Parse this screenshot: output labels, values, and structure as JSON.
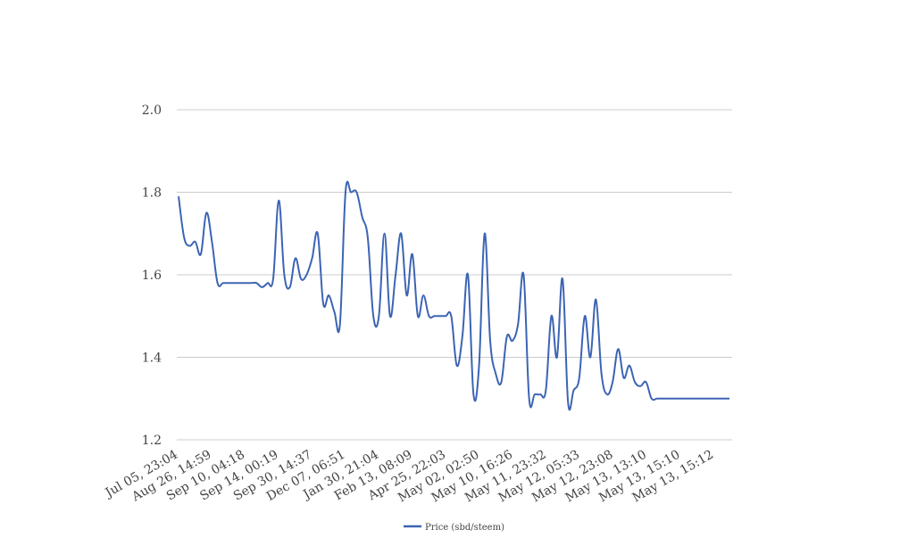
{
  "chart_data": {
    "type": "line",
    "title": "",
    "xlabel": "",
    "ylabel": "",
    "ylim": [
      1.2,
      2.0
    ],
    "yticks": [
      "2.0",
      "1.8",
      "1.6",
      "1.4",
      "1.2"
    ],
    "ytick_values": [
      2.0,
      1.8,
      1.6,
      1.4,
      1.2
    ],
    "xtick_labels": [
      "Jul 05, 23:04",
      "Aug 26, 14:59",
      "Sep 10, 04:18",
      "Sep 14, 00:19",
      "Sep 30, 14:37",
      "Dec 07, 06:51",
      "Jan 30, 21:04",
      "Feb 13, 08:09",
      "Apr 25, 22:03",
      "May 02, 02:50",
      "May 10, 16:26",
      "May 11, 23:32",
      "May 12, 05:33",
      "May 12, 23:08",
      "May 13, 13:10",
      "May 13, 15:10",
      "May 13, 15:12"
    ],
    "grid": true,
    "legend_position": "bottom",
    "series": [
      {
        "name": "Price (sbd/steem)",
        "color": "#3c64b4",
        "values": [
          1.79,
          1.69,
          1.67,
          1.68,
          1.65,
          1.75,
          1.68,
          1.58,
          1.58,
          1.58,
          1.58,
          1.58,
          1.58,
          1.58,
          1.58,
          1.57,
          1.58,
          1.59,
          1.78,
          1.6,
          1.57,
          1.64,
          1.59,
          1.6,
          1.64,
          1.7,
          1.53,
          1.55,
          1.51,
          1.48,
          1.8,
          1.8,
          1.8,
          1.74,
          1.69,
          1.5,
          1.5,
          1.7,
          1.5,
          1.6,
          1.7,
          1.55,
          1.65,
          1.5,
          1.55,
          1.5,
          1.5,
          1.5,
          1.5,
          1.5,
          1.38,
          1.45,
          1.6,
          1.31,
          1.38,
          1.7,
          1.44,
          1.36,
          1.34,
          1.45,
          1.44,
          1.48,
          1.6,
          1.3,
          1.31,
          1.31,
          1.32,
          1.5,
          1.4,
          1.59,
          1.29,
          1.32,
          1.35,
          1.5,
          1.4,
          1.54,
          1.36,
          1.31,
          1.34,
          1.42,
          1.35,
          1.38,
          1.34,
          1.33,
          1.34,
          1.3,
          1.3,
          1.3,
          1.3,
          1.3,
          1.3,
          1.3,
          1.3,
          1.3,
          1.3,
          1.3,
          1.3,
          1.3,
          1.3,
          1.3
        ]
      }
    ]
  }
}
